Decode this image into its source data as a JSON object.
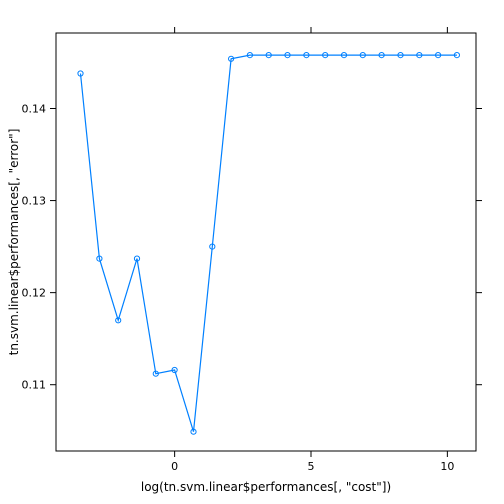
{
  "chart_data": {
    "type": "line",
    "xlabel": "log(tn.svm.linear$performances[, \"cost\"])",
    "ylabel": "tn.svm.linear$performances[, \"error\"]",
    "xlim": [
      -4.35,
      11.05
    ],
    "ylim": [
      0.1028,
      0.1482
    ],
    "x_ticks": [
      0,
      5,
      10
    ],
    "y_ticks": [
      0.11,
      0.12,
      0.13,
      0.14
    ],
    "series_color": "#0080ff",
    "grid": false,
    "series": [
      {
        "x": [
          -3.45,
          -2.76,
          -2.07,
          -1.38,
          -0.69,
          0.0,
          0.69,
          1.38,
          2.07,
          2.76,
          3.45,
          4.14,
          4.83,
          5.52,
          6.21,
          6.9,
          7.59,
          8.28,
          8.97,
          9.66,
          10.35
        ],
        "values": [
          0.1438,
          0.1237,
          0.117,
          0.1237,
          0.1112,
          0.1116,
          0.1049,
          0.125,
          0.1454,
          0.1458,
          0.1458,
          0.1458,
          0.1458,
          0.1458,
          0.1458,
          0.1458,
          0.1458,
          0.1458,
          0.1458,
          0.1458,
          0.1458
        ]
      }
    ]
  }
}
